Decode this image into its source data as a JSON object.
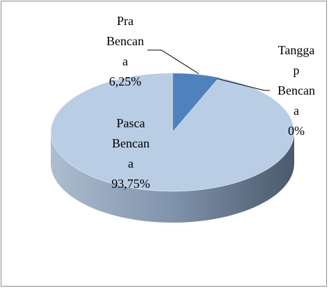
{
  "chart_data": {
    "type": "pie",
    "categories": [
      "Pra Bencana",
      "Tanggap Bencana",
      "Pasca Bencana"
    ],
    "values": [
      6.25,
      0,
      93.75
    ],
    "value_labels": [
      "6,25%",
      "0%",
      "93,75%"
    ],
    "colors": [
      "#4f81bd",
      "#4f81bd",
      "#b9cde5"
    ]
  }
}
